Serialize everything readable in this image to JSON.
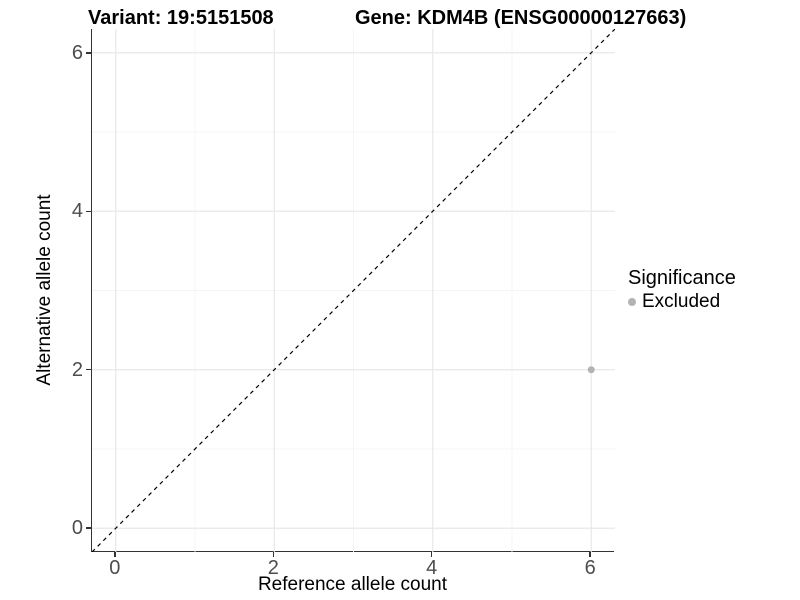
{
  "header": {
    "variant_title": "Variant: 19:5151508",
    "gene_title": "Gene: KDM4B (ENSG00000127663)"
  },
  "colors": {
    "background": "#ffffff",
    "grid_major": "#e8e8e8",
    "grid_minor": "#f4f4f4",
    "axis_line": "#333333",
    "tick_text": "#4d4d4d",
    "reference_line": "#000000",
    "excluded_point": "#b3b3b3"
  },
  "chart_data": {
    "type": "scatter",
    "title": "Variant: 19:5151508    Gene: KDM4B (ENSG00000127663)",
    "xlabel": "Reference allele count",
    "ylabel": "Alternative allele count",
    "x_range": [
      -0.3,
      6.3
    ],
    "y_range": [
      -0.3,
      6.3
    ],
    "xticks": [
      0,
      2,
      4,
      6
    ],
    "yticks": [
      0,
      2,
      4,
      6
    ],
    "xtick_labels": [
      "0",
      "2",
      "4",
      "6"
    ],
    "ytick_labels": [
      "0",
      "2",
      "4",
      "6"
    ],
    "minor_ticks": [
      1,
      3,
      5
    ],
    "grid": true,
    "series": [
      {
        "name": "Excluded",
        "color": "#b3b3b3",
        "point_radius": 3.5,
        "points": [
          {
            "x": 6,
            "y": 2
          }
        ]
      }
    ],
    "reference_line": {
      "type": "identity",
      "label": "y = x",
      "style": "dashed",
      "color": "#000000"
    },
    "legend": {
      "title": "Significance",
      "position": "right",
      "entries": [
        {
          "label": "Excluded",
          "color": "#b3b3b3"
        }
      ]
    }
  }
}
